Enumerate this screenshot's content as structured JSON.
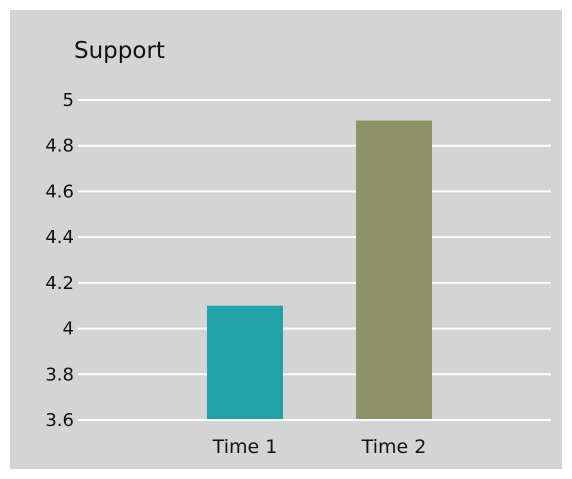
{
  "chart_data": {
    "type": "bar",
    "title": "Support",
    "xlabel": "",
    "ylabel": "",
    "categories": [
      "Time 1",
      "Time 2"
    ],
    "values": [
      4.1,
      4.91
    ],
    "bar_colors": [
      "#20a3a8",
      "#8f9369"
    ],
    "ylim": [
      3.6,
      5.0
    ],
    "yticks": [
      "3.6",
      "3.8",
      "4",
      "4.2",
      "4.4",
      "4.6",
      "4.8",
      "5"
    ],
    "ytick_values": [
      3.6,
      3.8,
      4.0,
      4.2,
      4.4,
      4.6,
      4.8,
      5.0
    ],
    "grid": true,
    "legend": "none",
    "background": "#d4d4d4",
    "grid_color": "#ffffff"
  }
}
